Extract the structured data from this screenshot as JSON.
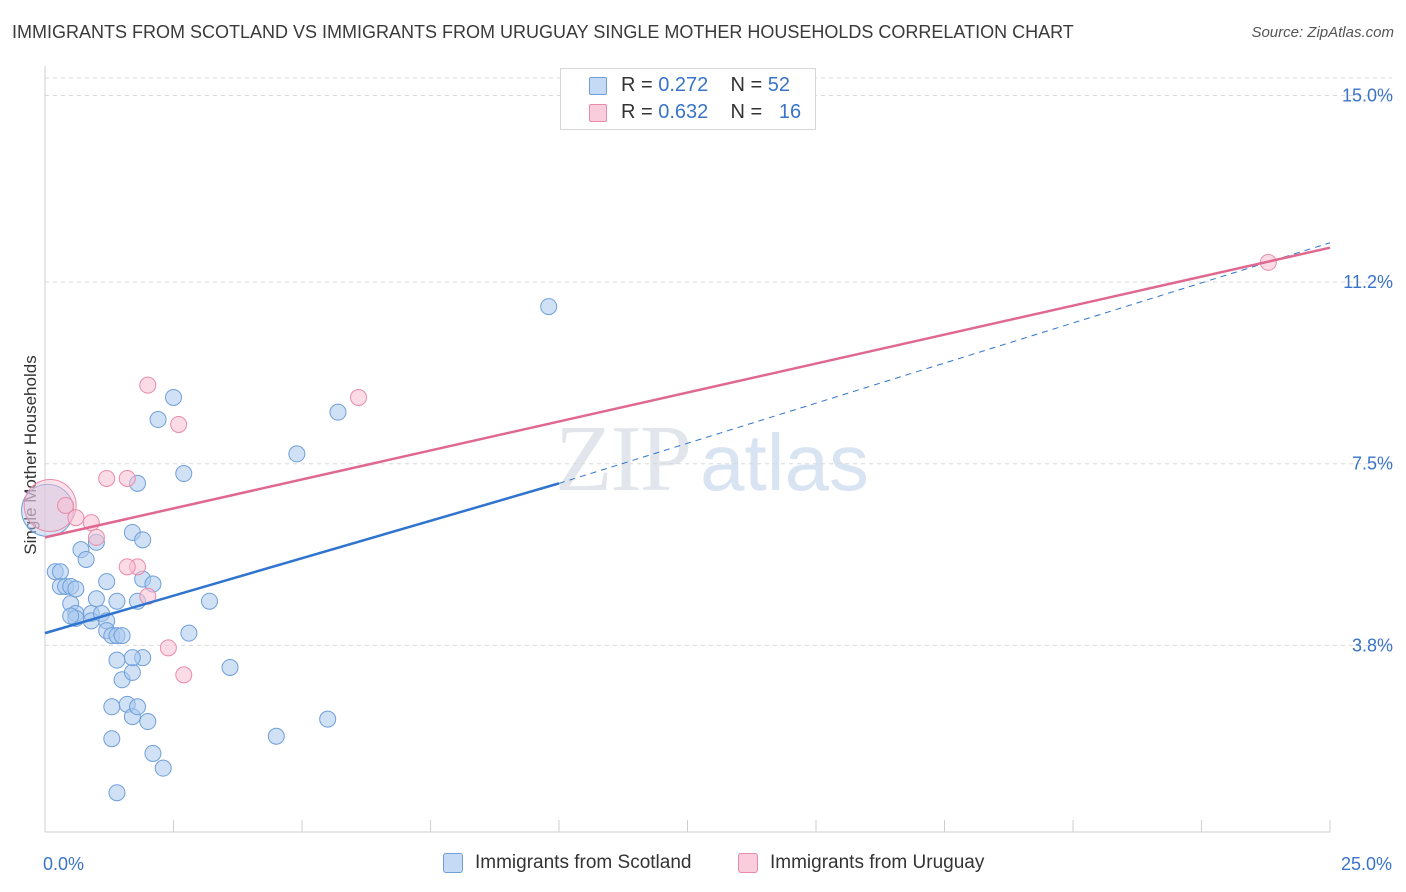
{
  "title": "IMMIGRANTS FROM SCOTLAND VS IMMIGRANTS FROM URUGUAY SINGLE MOTHER HOUSEHOLDS CORRELATION CHART",
  "source": "Source: ZipAtlas.com",
  "watermark": {
    "zip": "ZIP",
    "atlas": "atlas"
  },
  "legend": {
    "rows": [
      {
        "r_label": "R =",
        "r_value": "0.272",
        "n_label": "N =",
        "n_value": "52"
      },
      {
        "r_label": "R =",
        "r_value": "0.632",
        "n_label": "N =",
        "n_value": "16"
      }
    ]
  },
  "colors": {
    "scotland_fill": "#a9c8ef",
    "scotland_stroke": "#6f9fd8",
    "scotland_line": "#2f74cf",
    "uruguay_fill": "#f7bfd1",
    "uruguay_stroke": "#e98aa9",
    "uruguay_line": "#e0688f",
    "grid": "#d9d9d9",
    "axis_label": "#3a74c8"
  },
  "chart_data": {
    "type": "scatter",
    "title": "IMMIGRANTS FROM SCOTLAND VS IMMIGRANTS FROM URUGUAY SINGLE MOTHER HOUSEHOLDS CORRELATION CHART",
    "ylabel": "Single Mother Households",
    "xlabel": "",
    "xlim": [
      0,
      25
    ],
    "ylim": [
      0,
      15.6
    ],
    "x_tick_labels": [
      {
        "value": 0,
        "label": "0.0%"
      },
      {
        "value": 25,
        "label": "25.0%"
      }
    ],
    "y_tick_labels": [
      {
        "value": 3.8,
        "label": "3.8%"
      },
      {
        "value": 7.5,
        "label": "7.5%"
      },
      {
        "value": 11.2,
        "label": "11.2%"
      },
      {
        "value": 15.0,
        "label": "15.0%"
      }
    ],
    "x_minor_ticks": [
      0,
      2.5,
      5,
      7.5,
      10,
      12.5,
      15,
      17.5,
      20,
      22.5,
      25
    ],
    "series": [
      {
        "name": "Immigrants from Scotland",
        "R": 0.272,
        "N": 52,
        "trend": {
          "x0": 0,
          "y0": 4.05,
          "x1": 10,
          "y1": 7.1,
          "dash_to_x": 25,
          "dash_to_y": 12.0
        },
        "points": [
          {
            "x": 0.05,
            "y": 6.55,
            "big": true
          },
          {
            "x": 0.2,
            "y": 5.3
          },
          {
            "x": 0.3,
            "y": 5.3
          },
          {
            "x": 0.3,
            "y": 5.0
          },
          {
            "x": 0.4,
            "y": 5.0
          },
          {
            "x": 0.5,
            "y": 4.65
          },
          {
            "x": 0.6,
            "y": 4.45
          },
          {
            "x": 0.6,
            "y": 4.35
          },
          {
            "x": 0.5,
            "y": 5.0
          },
          {
            "x": 0.6,
            "y": 4.95
          },
          {
            "x": 0.5,
            "y": 4.4
          },
          {
            "x": 0.9,
            "y": 4.45
          },
          {
            "x": 0.7,
            "y": 5.75
          },
          {
            "x": 0.8,
            "y": 5.55
          },
          {
            "x": 0.9,
            "y": 4.3
          },
          {
            "x": 1.1,
            "y": 4.45
          },
          {
            "x": 1.2,
            "y": 4.3
          },
          {
            "x": 1.0,
            "y": 4.75
          },
          {
            "x": 1.2,
            "y": 4.1
          },
          {
            "x": 1.3,
            "y": 4.0
          },
          {
            "x": 1.4,
            "y": 4.0
          },
          {
            "x": 1.2,
            "y": 5.1
          },
          {
            "x": 1.5,
            "y": 4.0
          },
          {
            "x": 1.0,
            "y": 5.9
          },
          {
            "x": 1.7,
            "y": 6.1
          },
          {
            "x": 1.4,
            "y": 4.7
          },
          {
            "x": 1.4,
            "y": 3.5
          },
          {
            "x": 1.5,
            "y": 3.1
          },
          {
            "x": 1.3,
            "y": 2.55
          },
          {
            "x": 1.6,
            "y": 2.6
          },
          {
            "x": 1.7,
            "y": 2.35
          },
          {
            "x": 1.8,
            "y": 2.55
          },
          {
            "x": 2.0,
            "y": 2.25
          },
          {
            "x": 2.1,
            "y": 1.6
          },
          {
            "x": 1.3,
            "y": 1.9
          },
          {
            "x": 1.7,
            "y": 3.25
          },
          {
            "x": 1.9,
            "y": 3.55
          },
          {
            "x": 1.7,
            "y": 3.55
          },
          {
            "x": 1.8,
            "y": 4.7
          },
          {
            "x": 1.9,
            "y": 5.15
          },
          {
            "x": 2.1,
            "y": 5.05
          },
          {
            "x": 1.9,
            "y": 5.95
          },
          {
            "x": 1.8,
            "y": 7.1
          },
          {
            "x": 2.2,
            "y": 8.4
          },
          {
            "x": 2.5,
            "y": 8.85
          },
          {
            "x": 2.7,
            "y": 7.3
          },
          {
            "x": 2.8,
            "y": 4.05
          },
          {
            "x": 3.2,
            "y": 4.7
          },
          {
            "x": 3.6,
            "y": 3.35
          },
          {
            "x": 2.3,
            "y": 1.3
          },
          {
            "x": 1.4,
            "y": 0.8
          },
          {
            "x": 4.5,
            "y": 1.95
          },
          {
            "x": 5.5,
            "y": 2.3
          },
          {
            "x": 5.7,
            "y": 8.55
          },
          {
            "x": 4.9,
            "y": 7.7
          },
          {
            "x": 9.8,
            "y": 10.7
          }
        ]
      },
      {
        "name": "Immigrants from Uruguay",
        "R": 0.632,
        "N": 16,
        "trend": {
          "x0": 0,
          "y0": 6.0,
          "x1": 25,
          "y1": 11.9
        },
        "points": [
          {
            "x": 0.1,
            "y": 6.65,
            "big": true
          },
          {
            "x": 0.4,
            "y": 6.65
          },
          {
            "x": 0.6,
            "y": 6.4
          },
          {
            "x": 0.9,
            "y": 6.3
          },
          {
            "x": 1.0,
            "y": 6.0
          },
          {
            "x": 1.2,
            "y": 7.2
          },
          {
            "x": 1.6,
            "y": 7.2
          },
          {
            "x": 1.8,
            "y": 5.4
          },
          {
            "x": 1.6,
            "y": 5.4
          },
          {
            "x": 2.0,
            "y": 4.8
          },
          {
            "x": 2.4,
            "y": 3.75
          },
          {
            "x": 2.7,
            "y": 3.2
          },
          {
            "x": 2.6,
            "y": 8.3
          },
          {
            "x": 2.0,
            "y": 9.1
          },
          {
            "x": 6.1,
            "y": 8.85
          },
          {
            "x": 23.8,
            "y": 11.6
          }
        ]
      }
    ],
    "legend_position": "top-center"
  },
  "bottom_legend": [
    "Immigrants from Scotland",
    "Immigrants from Uruguay"
  ]
}
